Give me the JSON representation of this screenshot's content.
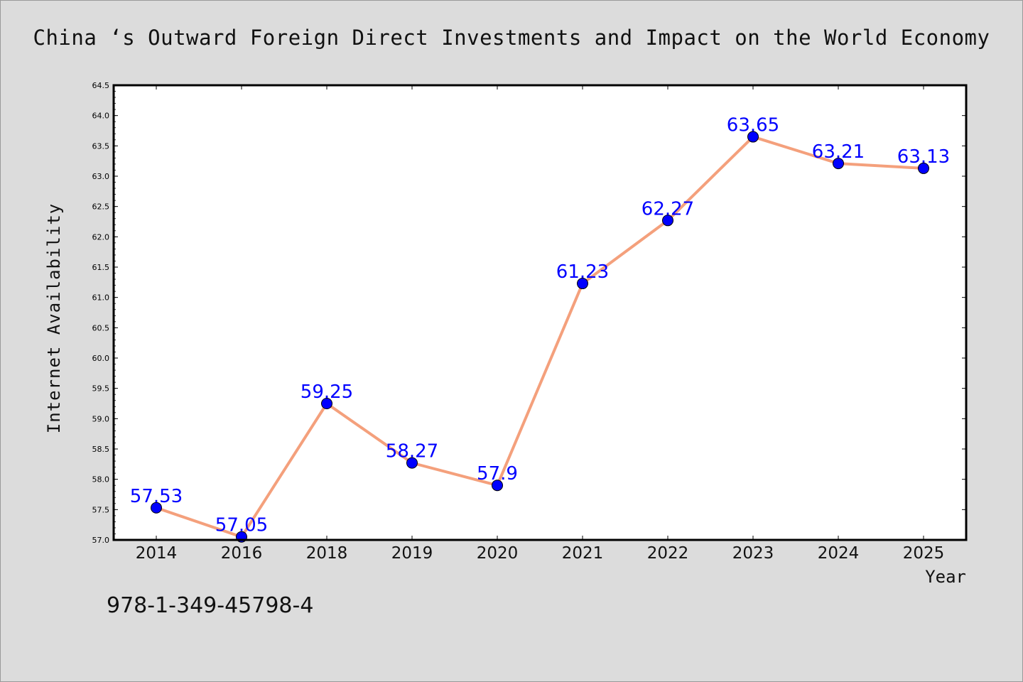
{
  "chart_data": {
    "type": "line",
    "title": "China ‘s Outward Foreign Direct Investments and Impact on the World Economy",
    "xlabel": "Year",
    "ylabel": "Internet Availability",
    "categories": [
      "2014",
      "2016",
      "2018",
      "2019",
      "2020",
      "2021",
      "2022",
      "2023",
      "2024",
      "2025"
    ],
    "series": [
      {
        "values": [
          57.53,
          57.05,
          59.25,
          58.27,
          57.9,
          61.23,
          62.27,
          63.65,
          63.21,
          63.13
        ]
      }
    ],
    "data_labels": [
      "57.53",
      "57.05",
      "59.25",
      "58.27",
      "57.9",
      "61.23",
      "62.27",
      "63.65",
      "63.21",
      "63.13"
    ],
    "ylim": [
      57.0,
      64.5
    ],
    "yticks": [
      "57.0",
      "57.5",
      "58.0",
      "58.5",
      "59.0",
      "59.5",
      "60.0",
      "60.5",
      "61.0",
      "61.5",
      "62.0",
      "62.5",
      "63.0",
      "63.5",
      "64.0",
      "64.5"
    ],
    "grid": false,
    "legend": "none",
    "colors": {
      "line": "#f4a07c",
      "marker": "#0000ff",
      "label": "#0000ff",
      "plot_bg": "#ffffff",
      "figure_bg": "#dcdcdc"
    }
  },
  "caption": "978-1-349-45798-4"
}
